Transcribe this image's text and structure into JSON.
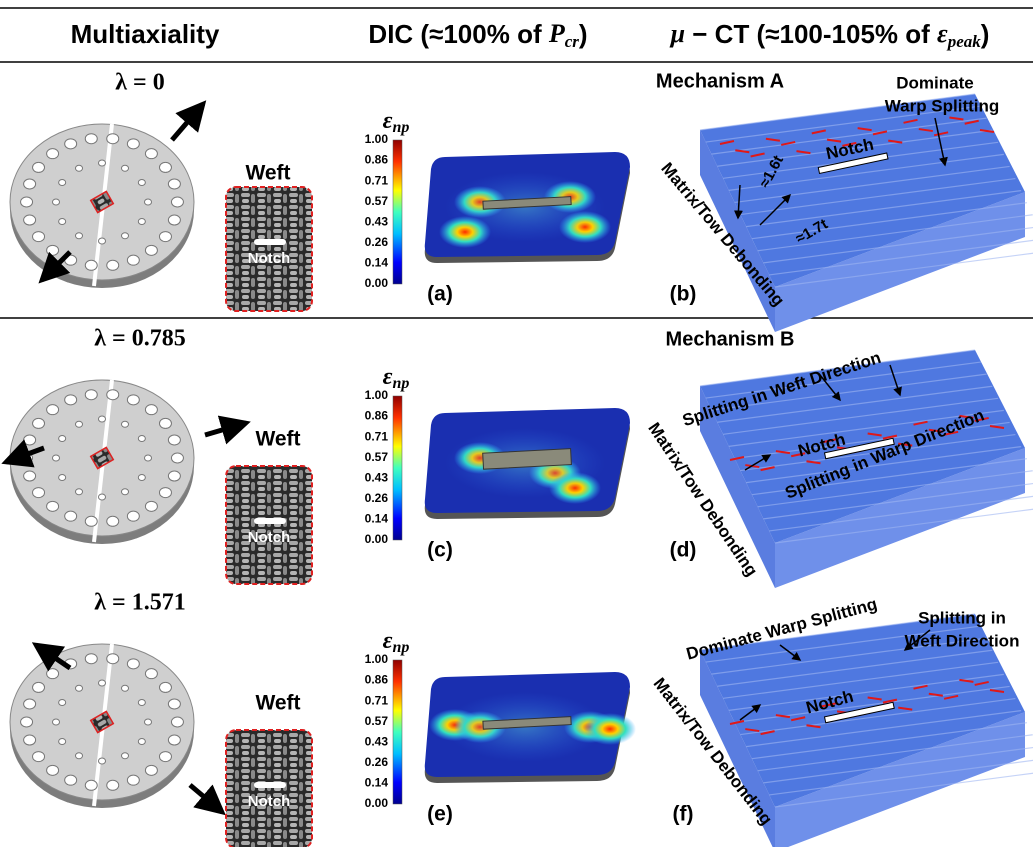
{
  "header": {
    "columns": [
      {
        "text": "Multiaxiality"
      },
      {
        "text": "DIC (≈100% of ",
        "symbol": "P",
        "subscript": "cr",
        "suffix": ")"
      },
      {
        "symbol": "μ",
        "text": " − CT (≈100-105% of ",
        "symbol2": "ε",
        "subscript": "peak",
        "suffix": ")"
      }
    ]
  },
  "rows": [
    {
      "lambda": "λ = 0",
      "weave_label": "Weft",
      "notch_label": "Notch",
      "colorbar_label": {
        "symbol": "ε",
        "subscript": "np"
      },
      "colorbar_ticks": [
        "1.00",
        "0.86",
        "0.71",
        "0.57",
        "0.43",
        "0.26",
        "0.14",
        "0.00"
      ],
      "dic_panel": "(a)",
      "ct_panel": "(b)",
      "annotations": [
        "Mechanism A",
        "Dominate",
        "Warp Splitting",
        "Notch",
        "≈1.6t",
        "≈1.7t",
        "Matrix/Tow Debonding"
      ]
    },
    {
      "lambda": "λ = 0.785",
      "weave_label": "Weft",
      "notch_label": "Notch",
      "colorbar_label": {
        "symbol": "ε",
        "subscript": "np"
      },
      "colorbar_ticks": [
        "1.00",
        "0.86",
        "0.71",
        "0.57",
        "0.43",
        "0.26",
        "0.14",
        "0.00"
      ],
      "dic_panel": "(c)",
      "ct_panel": "(d)",
      "annotations": [
        "Mechanism B",
        "Splitting in Weft Direction",
        "Notch",
        "Splitting in Warp Direction",
        "Matrix/Tow Debonding"
      ]
    },
    {
      "lambda": "λ = 1.571",
      "weave_label": "Weft",
      "notch_label": "Notch",
      "colorbar_label": {
        "symbol": "ε",
        "subscript": "np"
      },
      "colorbar_ticks": [
        "1.00",
        "0.86",
        "0.71",
        "0.57",
        "0.43",
        "0.26",
        "0.14",
        "0.00"
      ],
      "dic_panel": "(e)",
      "ct_panel": "(f)",
      "annotations": [
        "Dominate Warp Splitting",
        "Splitting in",
        "Weft Direction",
        "Notch",
        "Matrix/Tow Debonding"
      ]
    }
  ]
}
